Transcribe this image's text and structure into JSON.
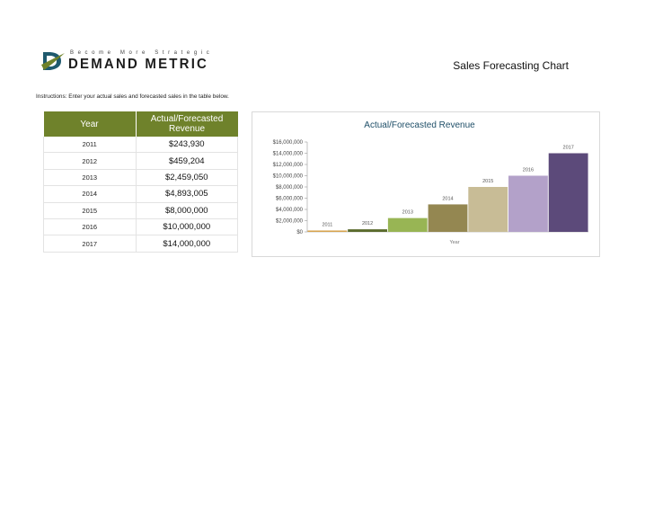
{
  "header": {
    "tagline": "Become More Strategic",
    "brand": "DEMAND METRIC",
    "title": "Sales Forecasting Chart"
  },
  "instructions": "Instructions: Enter your actual sales and forecasted sales in the table below.",
  "table": {
    "headers": [
      "Year",
      "Actual/Forecasted Revenue"
    ],
    "rows": [
      {
        "year": "2011",
        "revenue": "$243,930"
      },
      {
        "year": "2012",
        "revenue": "$459,204"
      },
      {
        "year": "2013",
        "revenue": "$2,459,050"
      },
      {
        "year": "2014",
        "revenue": "$4,893,005"
      },
      {
        "year": "2015",
        "revenue": "$8,000,000"
      },
      {
        "year": "2016",
        "revenue": "$10,000,000"
      },
      {
        "year": "2017",
        "revenue": "$14,000,000"
      }
    ]
  },
  "colors": {
    "header_green": "#6f822b",
    "bars": [
      "#d7a44e",
      "#5a6a2c",
      "#98b554",
      "#948751",
      "#c8bc96",
      "#b3a1c9",
      "#5c4a7a"
    ]
  },
  "chart_data": {
    "type": "bar",
    "title": "Actual/Forecasted Revenue",
    "xlabel": "Year",
    "ylabel": "",
    "categories": [
      "2011",
      "2012",
      "2013",
      "2014",
      "2015",
      "2016",
      "2017"
    ],
    "values": [
      243930,
      459204,
      2459050,
      4893005,
      8000000,
      10000000,
      14000000
    ],
    "ylim": [
      0,
      16000000
    ],
    "yticks": [
      0,
      2000000,
      4000000,
      6000000,
      8000000,
      10000000,
      12000000,
      14000000,
      16000000
    ],
    "ytick_labels": [
      "$0",
      "$2,000,000",
      "$4,000,000",
      "$6,000,000",
      "$8,000,000",
      "$10,000,000",
      "$12,000,000",
      "$14,000,000",
      "$16,000,000"
    ],
    "grid": false,
    "legend": "none"
  }
}
